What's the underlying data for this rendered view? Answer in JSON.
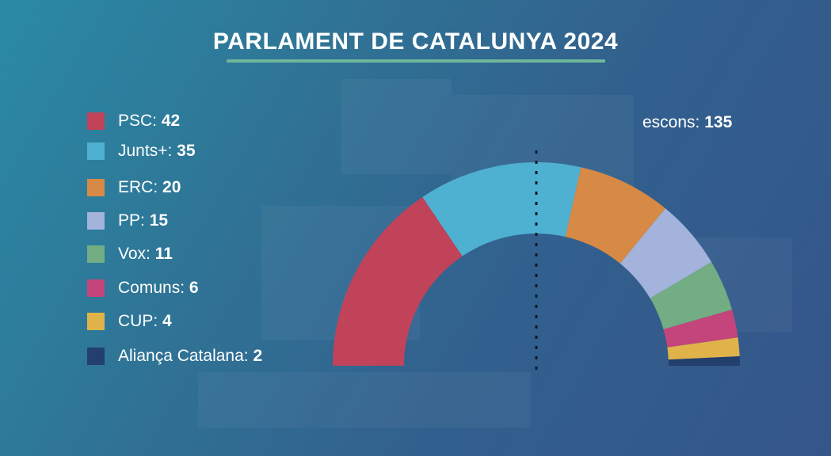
{
  "title": "PARLAMENT DE CATALUNYA 2024",
  "seats_label": "escons:",
  "seats_total": "135",
  "legend": [
    {
      "name": "PSC:",
      "value": "42",
      "color": "#c0435a"
    },
    {
      "name": "Junts+:",
      "value": "35",
      "color": "#4fb1d1"
    },
    {
      "name": "ERC:",
      "value": "20",
      "color": "#d68a45"
    },
    {
      "name": "PP:",
      "value": "15",
      "color": "#a3b3dc"
    },
    {
      "name": "Vox:",
      "value": "11",
      "color": "#72ad84"
    },
    {
      "name": "Comuns:",
      "value": "6",
      "color": "#c4457c"
    },
    {
      "name": "CUP:",
      "value": "4",
      "color": "#e0b34a"
    },
    {
      "name": "Aliança Catalana:",
      "value": "2",
      "color": "#233f6e"
    }
  ],
  "chart_data": {
    "type": "pie",
    "subtype": "semicircle-hemicycle",
    "title": "PARLAMENT DE CATALUNYA 2024",
    "categories": [
      "PSC",
      "Junts+",
      "ERC",
      "PP",
      "Vox",
      "Comuns",
      "CUP",
      "Aliança Catalana"
    ],
    "values": [
      42,
      35,
      20,
      15,
      11,
      6,
      4,
      2
    ],
    "colors": [
      "#c0435a",
      "#4fb1d1",
      "#d68a45",
      "#a3b3dc",
      "#72ad84",
      "#c4457c",
      "#e0b34a",
      "#233f6e"
    ],
    "total": 135,
    "annotations": [
      "escons: 135",
      "majority line (dotted vertical at center)"
    ],
    "legend_position": "left"
  }
}
